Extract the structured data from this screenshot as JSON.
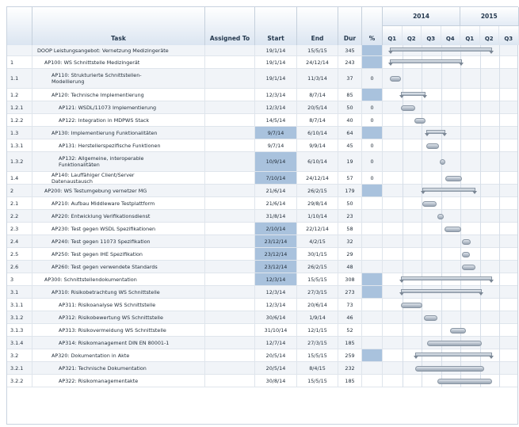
{
  "columns": {
    "task": "Task",
    "assigned": "Assigned To",
    "start": "Start",
    "end": "End",
    "dur": "Dur",
    "pct": "%"
  },
  "timeline": {
    "years": [
      {
        "label": "2014"
      },
      {
        "label": "2015"
      }
    ],
    "quarters": [
      "Q1",
      "Q2",
      "Q3",
      "Q4",
      "Q1",
      "Q2",
      "Q3"
    ]
  },
  "rows": [
    {
      "id": "",
      "task": "DOOP Leistungsangebot: Vernetzung Medizingeräte",
      "start": "19/1/14",
      "end": "15/5/15",
      "dur": "345",
      "pct": "",
      "level": 0,
      "summary": true,
      "startHl": false
    },
    {
      "id": "1",
      "task": "AP100: WS Schnittstelle Medizingerät",
      "start": "19/1/14",
      "end": "24/12/14",
      "dur": "243",
      "pct": "",
      "level": 1,
      "summary": true,
      "startHl": false
    },
    {
      "id": "1.1",
      "task": "AP110: Strukturierte Schnittstellen-Modellierung",
      "start": "19/1/14",
      "end": "11/3/14",
      "dur": "37",
      "pct": "0",
      "level": 2,
      "summary": false,
      "startHl": false
    },
    {
      "id": "1.2",
      "task": "AP120: Technische Implementierung",
      "start": "12/3/14",
      "end": "8/7/14",
      "dur": "85",
      "pct": "",
      "level": 2,
      "summary": true,
      "startHl": false
    },
    {
      "id": "1.2.1",
      "task": "AP121: WSDL/11073 Implementierung",
      "start": "12/3/14",
      "end": "20/5/14",
      "dur": "50",
      "pct": "0",
      "level": 3,
      "summary": false,
      "startHl": false
    },
    {
      "id": "1.2.2",
      "task": "AP122: Integration in MDPWS Stack",
      "start": "14/5/14",
      "end": "8/7/14",
      "dur": "40",
      "pct": "0",
      "level": 3,
      "summary": false,
      "startHl": false
    },
    {
      "id": "1.3",
      "task": "AP130: Implementierung Funktionalitäten",
      "start": "9/7/14",
      "end": "6/10/14",
      "dur": "64",
      "pct": "",
      "level": 2,
      "summary": true,
      "startHl": true
    },
    {
      "id": "1.3.1",
      "task": "AP131: Herstellerspezifische Funktionen",
      "start": "9/7/14",
      "end": "9/9/14",
      "dur": "45",
      "pct": "0",
      "level": 3,
      "summary": false,
      "startHl": false
    },
    {
      "id": "1.3.2",
      "task": "AP132: Allgemeine, interoperable Funktionalitäten",
      "start": "10/9/14",
      "end": "6/10/14",
      "dur": "19",
      "pct": "0",
      "level": 3,
      "summary": false,
      "startHl": true
    },
    {
      "id": "1.4",
      "task": "AP140: Lauffähiger Client/Server Datenaustausch",
      "start": "7/10/14",
      "end": "24/12/14",
      "dur": "57",
      "pct": "0",
      "level": 2,
      "summary": false,
      "startHl": true
    },
    {
      "id": "2",
      "task": "AP200: WS Testumgebung vernetzer MG",
      "start": "21/6/14",
      "end": "26/2/15",
      "dur": "179",
      "pct": "",
      "level": 1,
      "summary": true,
      "startHl": false
    },
    {
      "id": "2.1",
      "task": "AP210: Aufbau Middleware Testplattform",
      "start": "21/6/14",
      "end": "29/8/14",
      "dur": "50",
      "pct": "",
      "level": 2,
      "summary": false,
      "startHl": false
    },
    {
      "id": "2.2",
      "task": "AP220: Entwicklung Verifikationsdienst",
      "start": "31/8/14",
      "end": "1/10/14",
      "dur": "23",
      "pct": "",
      "level": 2,
      "summary": false,
      "startHl": false
    },
    {
      "id": "2.3",
      "task": "AP230: Test gegen WSDL Spezifikationen",
      "start": "2/10/14",
      "end": "22/12/14",
      "dur": "58",
      "pct": "",
      "level": 2,
      "summary": false,
      "startHl": true
    },
    {
      "id": "2.4",
      "task": "AP240: Test gegen 11073 Spezifikation",
      "start": "23/12/14",
      "end": "4/2/15",
      "dur": "32",
      "pct": "",
      "level": 2,
      "summary": false,
      "startHl": true
    },
    {
      "id": "2.5",
      "task": "AP250: Test gegen IHE Spezifikation",
      "start": "23/12/14",
      "end": "30/1/15",
      "dur": "29",
      "pct": "",
      "level": 2,
      "summary": false,
      "startHl": true
    },
    {
      "id": "2.6",
      "task": "AP260: Test gegen verwendete Standards",
      "start": "23/12/14",
      "end": "26/2/15",
      "dur": "48",
      "pct": "",
      "level": 2,
      "summary": false,
      "startHl": true
    },
    {
      "id": "3",
      "task": "AP300: Schnittstellendokumentation",
      "start": "12/3/14",
      "end": "15/5/15",
      "dur": "308",
      "pct": "",
      "level": 1,
      "summary": true,
      "startHl": true
    },
    {
      "id": "3.1",
      "task": "AP310: Risikobetrachtung WS Schnittstelle",
      "start": "12/3/14",
      "end": "27/3/15",
      "dur": "273",
      "pct": "",
      "level": 2,
      "summary": true,
      "startHl": false
    },
    {
      "id": "3.1.1",
      "task": "AP311: Risikoanalyse WS Schnittstelle",
      "start": "12/3/14",
      "end": "20/6/14",
      "dur": "73",
      "pct": "",
      "level": 3,
      "summary": false,
      "startHl": false
    },
    {
      "id": "3.1.2",
      "task": "AP312: Risikobewertung WS Schnittstelle",
      "start": "30/6/14",
      "end": "1/9/14",
      "dur": "46",
      "pct": "",
      "level": 3,
      "summary": false,
      "startHl": false
    },
    {
      "id": "3.1.3",
      "task": "AP313: Risikovermeidung WS Schnittstelle",
      "start": "31/10/14",
      "end": "12/1/15",
      "dur": "52",
      "pct": "",
      "level": 3,
      "summary": false,
      "startHl": false
    },
    {
      "id": "3.1.4",
      "task": "AP314: Risikomanagement DIN EN 80001-1",
      "start": "12/7/14",
      "end": "27/3/15",
      "dur": "185",
      "pct": "",
      "level": 3,
      "summary": false,
      "startHl": false
    },
    {
      "id": "3.2",
      "task": "AP320: Dokumentation in Akte",
      "start": "20/5/14",
      "end": "15/5/15",
      "dur": "259",
      "pct": "",
      "level": 2,
      "summary": true,
      "startHl": false
    },
    {
      "id": "3.2.1",
      "task": "AP321: Technische Dokumentation",
      "start": "20/5/14",
      "end": "8/4/15",
      "dur": "232",
      "pct": "",
      "level": 3,
      "summary": false,
      "startHl": false
    },
    {
      "id": "3.2.2",
      "task": "AP322: Risikomanagementakte",
      "start": "30/8/14",
      "end": "15/5/15",
      "dur": "185",
      "pct": "",
      "level": 3,
      "summary": false,
      "startHl": false
    }
  ],
  "colors": {
    "header_text": "#24384e",
    "highlight": "#a9c2dd",
    "bar": "#9aa6b4"
  }
}
